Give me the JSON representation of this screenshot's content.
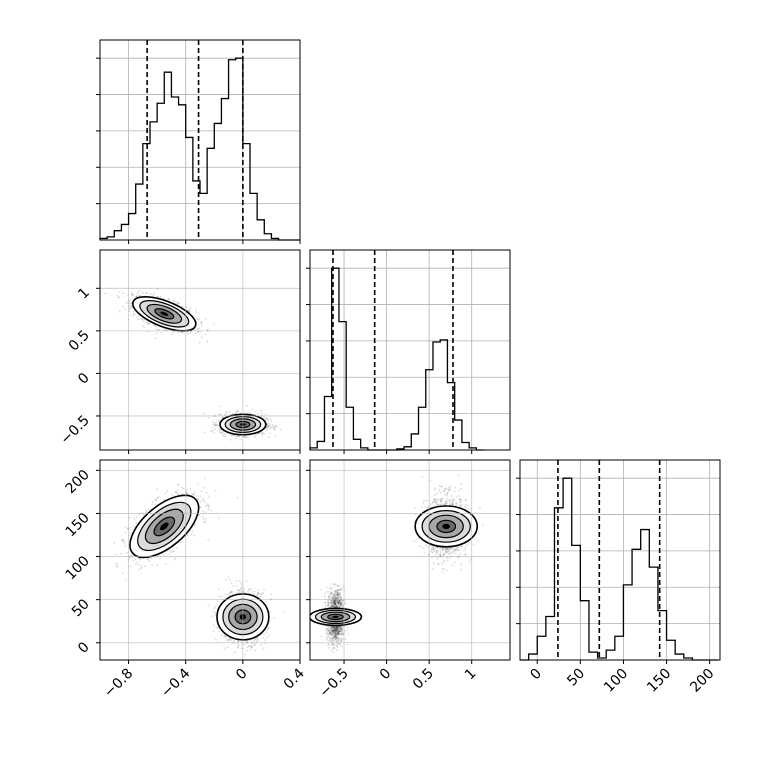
{
  "chart_data": [
    {
      "type": "histogram",
      "panel": "hist-p1",
      "x_range": [
        -1.0,
        0.4
      ],
      "bins": {
        "start": -1.0,
        "width": 0.05,
        "counts": [
          1,
          2,
          6,
          10,
          17,
          36,
          62,
          76,
          88,
          108,
          92,
          87,
          66,
          38,
          30,
          59,
          75,
          91,
          116,
          117,
          62,
          30,
          13,
          4,
          1,
          0,
          0,
          0
        ]
      },
      "quantiles": [
        -0.67,
        -0.31,
        0.0
      ],
      "x_ticks": [
        -0.8,
        -0.4,
        0.0,
        0.4
      ]
    },
    {
      "type": "scatter",
      "panel": "scatter-p1-p2",
      "x_range": [
        -1.0,
        0.4
      ],
      "y_range": [
        -0.9,
        1.45
      ],
      "clusters": [
        {
          "center": [
            -0.55,
            0.7
          ],
          "sd": [
            0.11,
            0.1
          ],
          "rho": -0.6,
          "n": 1200
        },
        {
          "center": [
            0.0,
            -0.6
          ],
          "sd": [
            0.08,
            0.06
          ],
          "rho": 0.0,
          "n": 1200
        }
      ],
      "x_ticks": [
        -0.8,
        -0.4,
        0.0,
        0.4
      ],
      "y_ticks": [
        -0.5,
        0.0,
        0.5,
        1.0
      ]
    },
    {
      "type": "histogram",
      "panel": "hist-p2",
      "x_range": [
        -0.9,
        1.45
      ],
      "bins": {
        "start": -0.9,
        "width": 0.085,
        "counts": [
          2,
          8,
          50,
          170,
          120,
          40,
          10,
          2,
          0,
          0,
          0,
          0,
          1,
          3,
          15,
          40,
          75,
          101,
          103,
          63,
          28,
          7,
          2,
          0
        ]
      },
      "quantiles": [
        -0.63,
        -0.14,
        0.78
      ],
      "x_ticks": [
        -0.5,
        0.0,
        0.5,
        1.0
      ]
    },
    {
      "type": "scatter",
      "panel": "scatter-p1-p3",
      "x_range": [
        -1.0,
        0.4
      ],
      "y_range": [
        -20,
        212
      ],
      "clusters": [
        {
          "center": [
            -0.55,
            135
          ],
          "sd": [
            0.12,
            18
          ],
          "rho": 0.6,
          "n": 1200
        },
        {
          "center": [
            0.0,
            30
          ],
          "sd": [
            0.08,
            15
          ],
          "rho": 0.0,
          "n": 1200
        }
      ],
      "x_ticks": [
        -0.8,
        -0.4,
        0.0,
        0.4
      ],
      "y_ticks": [
        0,
        50,
        100,
        150,
        200
      ]
    },
    {
      "type": "scatter",
      "panel": "scatter-p2-p3",
      "x_range": [
        -0.9,
        1.45
      ],
      "y_range": [
        -20,
        212
      ],
      "clusters": [
        {
          "center": [
            0.7,
            135
          ],
          "sd": [
            0.12,
            18
          ],
          "rho": 0.0,
          "n": 1200
        },
        {
          "center": [
            -0.6,
            30
          ],
          "sd": [
            0.05,
            15
          ],
          "rho": 0.0,
          "n": 1200
        }
      ],
      "x_ticks": [
        -0.5,
        0.0,
        0.5,
        1.0
      ],
      "y_ticks": [
        0,
        50,
        100,
        150,
        200
      ]
    },
    {
      "type": "histogram",
      "panel": "hist-p3",
      "x_range": [
        -20,
        212
      ],
      "bins": {
        "start": -20,
        "width": 10,
        "counts": [
          0,
          3,
          12,
          22,
          77,
          92,
          58,
          30,
          4,
          1,
          5,
          12,
          38,
          56,
          66,
          47,
          25,
          10,
          3,
          1,
          0,
          0,
          0
        ]
      },
      "quantiles": [
        24,
        72,
        142
      ],
      "x_ticks": [
        0,
        50,
        100,
        150,
        200
      ]
    }
  ]
}
